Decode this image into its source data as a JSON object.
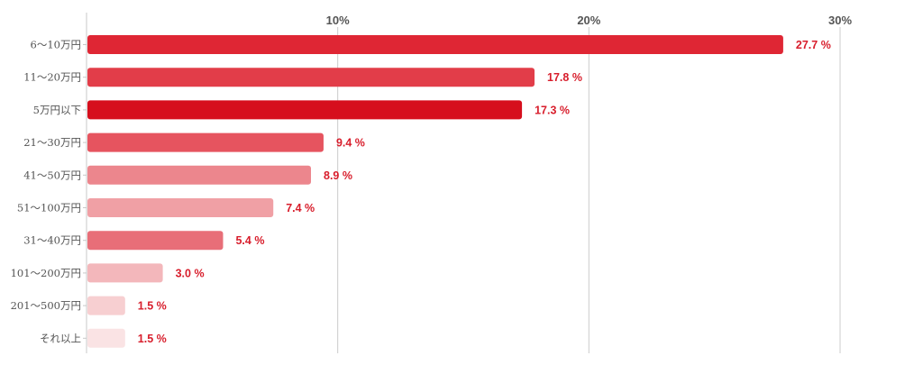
{
  "chart_data": {
    "type": "bar",
    "orientation": "horizontal",
    "categories": [
      "6〜10万円",
      "11〜20万円",
      "5万円以下",
      "21〜30万円",
      "41〜50万円",
      "51〜100万円",
      "31〜40万円",
      "101〜200万円",
      "201〜500万円",
      "それ以上"
    ],
    "values": [
      27.7,
      17.8,
      17.3,
      9.4,
      8.9,
      7.4,
      5.4,
      3.0,
      1.5,
      1.5
    ],
    "value_labels": [
      "27.7 %",
      "17.8 %",
      "17.3 %",
      "9.4 %",
      "8.9 %",
      "7.4 %",
      "5.4 %",
      "3.0 %",
      "1.5 %",
      "1.5 %"
    ],
    "colors": [
      "#df2634",
      "#e23d49",
      "#d60f1d",
      "#e6545f",
      "#ec868d",
      "#f0a0a5",
      "#e86e78",
      "#f3b7bb",
      "#f7cfd1",
      "#fae3e4"
    ],
    "xlim": [
      0,
      30
    ],
    "x_ticks": [
      10,
      20,
      30
    ],
    "x_tick_labels": [
      "10%",
      "20%",
      "30%"
    ],
    "tick_position": "top",
    "grid": true,
    "value_label_color": "#d81e2c"
  }
}
